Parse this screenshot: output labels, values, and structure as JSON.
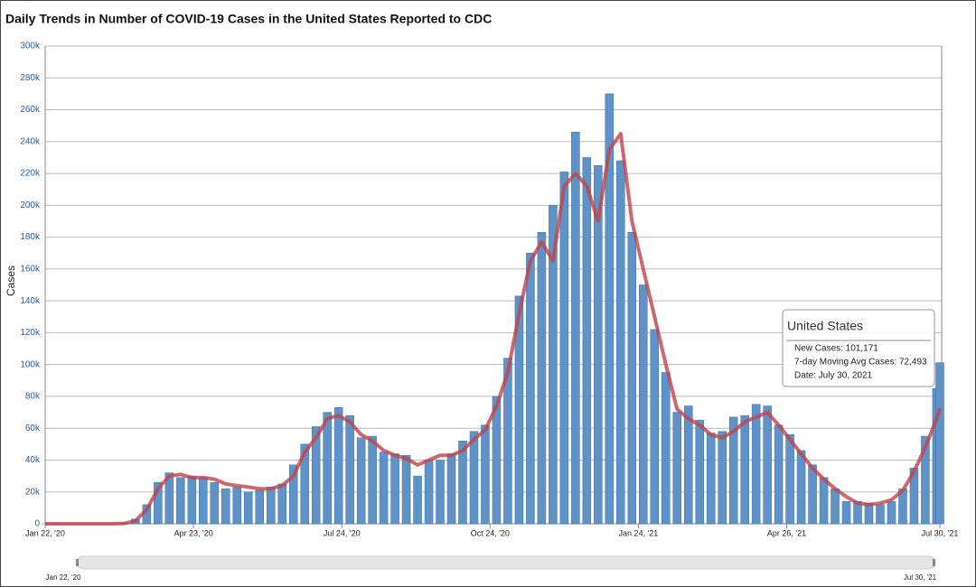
{
  "chart_data": {
    "type": "bar",
    "title": "Daily Trends in Number of COVID-19 Cases in the United States Reported to CDC",
    "y_label": "Cases",
    "x": [
      "2020-01-22",
      "2020-01-29",
      "2020-02-05",
      "2020-02-12",
      "2020-02-19",
      "2020-02-26",
      "2020-03-04",
      "2020-03-11",
      "2020-03-18",
      "2020-03-25",
      "2020-04-01",
      "2020-04-08",
      "2020-04-15",
      "2020-04-22",
      "2020-04-29",
      "2020-05-06",
      "2020-05-13",
      "2020-05-20",
      "2020-05-27",
      "2020-06-03",
      "2020-06-10",
      "2020-06-17",
      "2020-06-24",
      "2020-07-01",
      "2020-07-08",
      "2020-07-15",
      "2020-07-22",
      "2020-07-29",
      "2020-08-05",
      "2020-08-12",
      "2020-08-19",
      "2020-08-26",
      "2020-09-02",
      "2020-09-09",
      "2020-09-16",
      "2020-09-23",
      "2020-09-30",
      "2020-10-07",
      "2020-10-14",
      "2020-10-21",
      "2020-10-28",
      "2020-11-04",
      "2020-11-11",
      "2020-11-18",
      "2020-11-25",
      "2020-12-02",
      "2020-12-09",
      "2020-12-16",
      "2020-12-23",
      "2020-12-30",
      "2021-01-06",
      "2021-01-13",
      "2021-01-20",
      "2021-01-27",
      "2021-02-03",
      "2021-02-10",
      "2021-02-17",
      "2021-02-24",
      "2021-03-03",
      "2021-03-10",
      "2021-03-17",
      "2021-03-24",
      "2021-03-31",
      "2021-04-07",
      "2021-04-14",
      "2021-04-21",
      "2021-04-28",
      "2021-05-05",
      "2021-05-12",
      "2021-05-19",
      "2021-05-26",
      "2021-06-02",
      "2021-06-09",
      "2021-06-16",
      "2021-06-23",
      "2021-06-30",
      "2021-07-07",
      "2021-07-14",
      "2021-07-21",
      "2021-07-28",
      "2021-07-30"
    ],
    "series": [
      {
        "name": "New Cases",
        "color": "#5f93c8",
        "values": [
          0,
          0,
          0,
          0,
          0,
          0,
          50,
          400,
          3000,
          12000,
          26000,
          32000,
          29000,
          30000,
          29000,
          26000,
          22000,
          23000,
          20000,
          21000,
          23000,
          25000,
          37000,
          50000,
          61000,
          70000,
          73000,
          68000,
          54000,
          55000,
          45000,
          44000,
          43000,
          30000,
          40000,
          40000,
          44000,
          52000,
          58000,
          62000,
          80000,
          104000,
          143000,
          170000,
          183000,
          200000,
          221000,
          246000,
          230000,
          225000,
          270000,
          228000,
          183000,
          150000,
          122000,
          95000,
          70000,
          74000,
          65000,
          57000,
          58000,
          67000,
          68000,
          75000,
          74000,
          62000,
          56000,
          46000,
          37000,
          29000,
          22000,
          14000,
          14000,
          13000,
          12000,
          14000,
          22000,
          35000,
          55000,
          85000,
          101171
        ]
      },
      {
        "name": "7-day Moving Avg Cases",
        "type": "line",
        "color": "#c0444a",
        "values": [
          0,
          0,
          0,
          0,
          0,
          0,
          20,
          250,
          1800,
          9000,
          22000,
          30000,
          31000,
          29000,
          29000,
          28000,
          25000,
          24000,
          23000,
          22000,
          22000,
          24000,
          30000,
          45000,
          54000,
          66000,
          68000,
          64000,
          56000,
          52000,
          46000,
          43000,
          41000,
          37000,
          40000,
          43000,
          43000,
          46000,
          53000,
          59000,
          74000,
          95000,
          132000,
          165000,
          177000,
          165000,
          212000,
          220000,
          212000,
          190000,
          235000,
          245000,
          190000,
          160000,
          130000,
          100000,
          72000,
          66000,
          62000,
          56000,
          54000,
          58000,
          64000,
          67000,
          70000,
          62000,
          53000,
          44000,
          35000,
          28000,
          22000,
          17000,
          13000,
          12000,
          13000,
          15000,
          21000,
          33000,
          48000,
          66000,
          72493
        ]
      }
    ],
    "xlim": [
      "2020-01-22",
      "2021-07-30"
    ],
    "xticks": [
      {
        "value": "2020-01-22",
        "label": "Jan 22, '20"
      },
      {
        "value": "2020-04-23",
        "label": "Apr 23, '20"
      },
      {
        "value": "2020-07-24",
        "label": "Jul 24, '20"
      },
      {
        "value": "2020-10-24",
        "label": "Oct 24, '20"
      },
      {
        "value": "2021-01-24",
        "label": "Jan 24, '21"
      },
      {
        "value": "2021-04-26",
        "label": "Apr 26, '21"
      },
      {
        "value": "2021-07-30",
        "label": "Jul 30, '21"
      }
    ],
    "ylim": [
      0,
      300000
    ],
    "yticks": [
      0,
      {
        "value": 20000,
        "label": "20k"
      },
      {
        "value": 40000,
        "label": "40k"
      },
      {
        "value": 60000,
        "label": "60k"
      },
      {
        "value": 80000,
        "label": "80k"
      },
      {
        "value": 100000,
        "label": "100k"
      },
      {
        "value": 120000,
        "label": "120k"
      },
      {
        "value": 140000,
        "label": "140k"
      },
      {
        "value": 160000,
        "label": "160k"
      },
      {
        "value": 180000,
        "label": "180k"
      },
      {
        "value": 200000,
        "label": "200k"
      },
      {
        "value": 220000,
        "label": "220k"
      },
      {
        "value": 240000,
        "label": "240k"
      },
      {
        "value": 260000,
        "label": "260k"
      },
      {
        "value": 280000,
        "label": "280k"
      },
      {
        "value": 300000,
        "label": "300k"
      }
    ],
    "grid": true,
    "tooltip": {
      "title": "United States",
      "rows": [
        "New Cases: 101,171",
        "7-day Moving Avg Cases: 72,493",
        "Date: July 30, 2021"
      ]
    },
    "navigator": {
      "start_label": "Jan 22, '20",
      "end_label": "Jul 30, '21"
    }
  }
}
